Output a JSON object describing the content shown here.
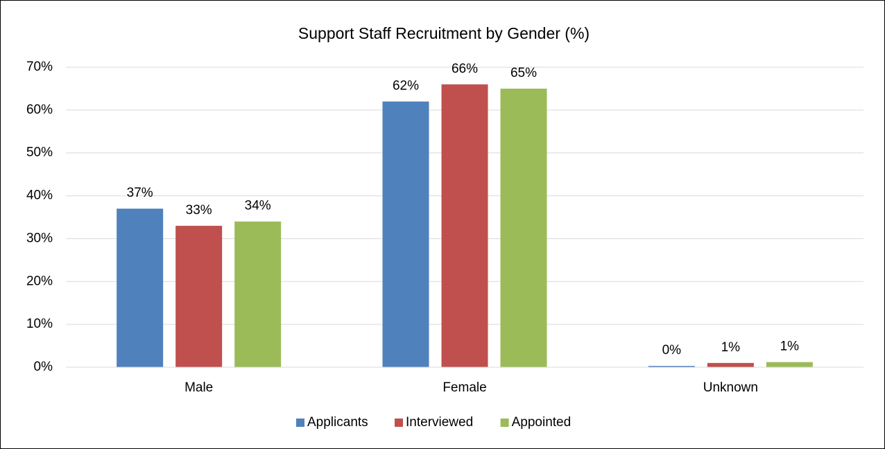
{
  "chart_data": {
    "type": "bar",
    "title": "Support Staff Recruitment by Gender (%)",
    "categories": [
      "Male",
      "Female",
      "Unknown"
    ],
    "series": [
      {
        "name": "Applicants",
        "color": "#4f81bd",
        "values": [
          37,
          62,
          0.3
        ],
        "value_labels": [
          "37%",
          "62%",
          "0%"
        ]
      },
      {
        "name": "Interviewed",
        "color": "#c0504d",
        "values": [
          33,
          66,
          1.0
        ],
        "value_labels": [
          "33%",
          "66%",
          "1%"
        ]
      },
      {
        "name": "Appointed",
        "color": "#9bbb59",
        "values": [
          34,
          65,
          1.2
        ],
        "value_labels": [
          "34%",
          "65%",
          "1%"
        ]
      }
    ],
    "ylim": [
      0,
      70
    ],
    "yticks": [
      {
        "value": 0,
        "label": "0%"
      },
      {
        "value": 10,
        "label": "10%"
      },
      {
        "value": 20,
        "label": "20%"
      },
      {
        "value": 30,
        "label": "30%"
      },
      {
        "value": 40,
        "label": "40%"
      },
      {
        "value": 50,
        "label": "50%"
      },
      {
        "value": 60,
        "label": "60%"
      },
      {
        "value": 70,
        "label": "70%"
      }
    ],
    "grid": true,
    "legend": "bottom"
  }
}
